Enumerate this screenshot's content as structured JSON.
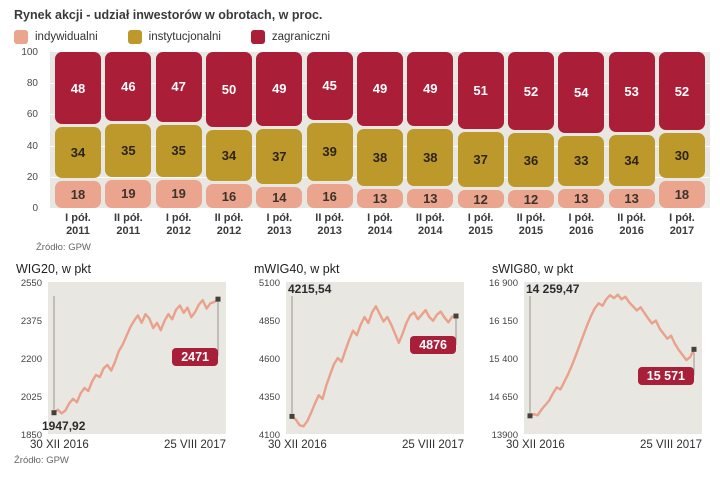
{
  "top": {
    "title": "Rynek akcji - udział inwestorów w obrotach, w proc.",
    "legend": [
      {
        "key": "individual",
        "label": "indywidualni"
      },
      {
        "key": "institutional",
        "label": "instytucjonalni"
      },
      {
        "key": "foreign",
        "label": "zagraniczni"
      }
    ],
    "source": "Źródło: GPW"
  },
  "bottom_source": "Źródło: GPW",
  "colors": {
    "individual": "#eba48e",
    "institutional": "#bd992c",
    "foreign": "#ab1e38",
    "plot_bg": "#e9e7e2",
    "line": "#e9a18a",
    "badge_bg": "#a81f39",
    "marker": "#45413a"
  },
  "chart_data": [
    {
      "type": "bar",
      "stacked": true,
      "title": "Rynek akcji - udział inwestorów w obrotach, w proc.",
      "categories": [
        "I pół.\n2011",
        "II pół.\n2011",
        "I pół.\n2012",
        "II pół.\n2012",
        "I pół.\n2013",
        "II pół.\n2013",
        "I pół.\n2014",
        "II pół.\n2014",
        "I pół.\n2015",
        "II pół.\n2015",
        "I pół.\n2016",
        "II pół.\n2016",
        "I pół.\n2017"
      ],
      "series": [
        {
          "name": "indywidualni",
          "key": "individual",
          "text_color": "#3c332a",
          "values": [
            18,
            19,
            19,
            16,
            14,
            16,
            13,
            13,
            12,
            12,
            13,
            13,
            18
          ]
        },
        {
          "name": "instytucjonalni",
          "key": "institutional",
          "text_color": "#2c2416",
          "values": [
            34,
            35,
            35,
            34,
            37,
            39,
            38,
            38,
            37,
            36,
            33,
            34,
            30
          ]
        },
        {
          "name": "zagraniczni",
          "key": "foreign",
          "text_color": "#ffffff",
          "values": [
            48,
            46,
            47,
            50,
            49,
            45,
            49,
            49,
            51,
            52,
            54,
            53,
            52
          ]
        }
      ],
      "ylim": [
        0,
        100
      ],
      "yticks": [
        100,
        80,
        60,
        40,
        20,
        0
      ],
      "legend_position": "top",
      "source": "Źródło: GPW"
    },
    {
      "id": "wig20",
      "type": "line",
      "title": "WIG20, w pkt",
      "ylim": [
        1850,
        2550
      ],
      "yticks": [
        "2550",
        "2375",
        "2200",
        "2025",
        "1850"
      ],
      "x_labels": [
        "30 XII 2016",
        "25 VIII 2017"
      ],
      "start_label": "1947,92",
      "start_label_pos": "bottom",
      "end_label": "2471",
      "badge_offset": 48,
      "values": [
        1948,
        1962,
        1945,
        1958,
        1992,
        2012,
        1996,
        2038,
        2062,
        2048,
        2092,
        2122,
        2112,
        2152,
        2168,
        2142,
        2182,
        2232,
        2262,
        2302,
        2342,
        2372,
        2396,
        2362,
        2402,
        2382,
        2338,
        2362,
        2328,
        2372,
        2402,
        2378,
        2422,
        2442,
        2408,
        2432,
        2388,
        2412,
        2446,
        2466,
        2428,
        2452,
        2458,
        2471
      ]
    },
    {
      "id": "mwig40",
      "type": "line",
      "title": "mWIG40, w pkt",
      "ylim": [
        4100,
        5100
      ],
      "yticks": [
        "5100",
        "4850",
        "4600",
        "4350",
        "4100"
      ],
      "x_labels": [
        "30 XII 2016",
        "25 VIII 2017"
      ],
      "start_label": "4215,54",
      "start_label_pos": "top",
      "end_label": "4876",
      "badge_offset": 20,
      "values": [
        4216,
        4195,
        4158,
        4150,
        4185,
        4240,
        4300,
        4355,
        4330,
        4420,
        4490,
        4560,
        4600,
        4575,
        4650,
        4720,
        4780,
        4750,
        4820,
        4870,
        4830,
        4900,
        4940,
        4890,
        4840,
        4870,
        4820,
        4760,
        4700,
        4760,
        4830,
        4880,
        4900,
        4855,
        4885,
        4915,
        4870,
        4845,
        4885,
        4905,
        4865,
        4835,
        4872,
        4876
      ]
    },
    {
      "id": "swig80",
      "type": "line",
      "title": "sWIG80, w pkt",
      "ylim": [
        13900,
        16900
      ],
      "yticks": [
        "16 900",
        "16 150",
        "15 400",
        "14 650",
        "13900"
      ],
      "x_labels": [
        "30 XII 2016",
        "25 VIII 2017"
      ],
      "start_label": "14 259,47",
      "start_label_pos": "top",
      "end_label": "15 571",
      "badge_offset": 17,
      "values": [
        14259,
        14290,
        14270,
        14380,
        14470,
        14560,
        14700,
        14820,
        14780,
        14930,
        15080,
        15260,
        15450,
        15650,
        15850,
        16050,
        16230,
        16380,
        16480,
        16430,
        16560,
        16640,
        16580,
        16650,
        16560,
        16610,
        16500,
        16420,
        16340,
        16400,
        16290,
        16180,
        16080,
        16140,
        15980,
        15880,
        15780,
        15840,
        15680,
        15560,
        15460,
        15360,
        15420,
        15571
      ]
    }
  ]
}
